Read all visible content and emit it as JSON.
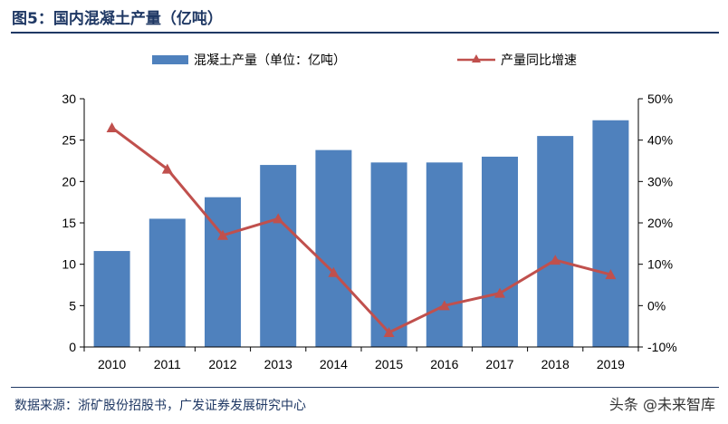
{
  "header": {
    "title": "图5：国内混凝土产量（亿吨）"
  },
  "footer": {
    "source": "数据来源：浙矿股份招股书，广发证券发展研究中心",
    "watermark": "头条 @未来智库"
  },
  "colors": {
    "bar": "#4f81bd",
    "line": "#c0504d",
    "axis": "#000000",
    "title": "#1f3864"
  },
  "chart_data": {
    "type": "bar+line",
    "title": "国内混凝土产量（亿吨）",
    "categories": [
      "2010",
      "2011",
      "2012",
      "2013",
      "2014",
      "2015",
      "2016",
      "2017",
      "2018",
      "2019"
    ],
    "series": [
      {
        "name": "混凝土产量（单位：亿吨）",
        "type": "bar",
        "axis": "left",
        "values": [
          11.6,
          15.5,
          18.1,
          22.0,
          23.8,
          22.3,
          22.3,
          23.0,
          25.5,
          27.4
        ]
      },
      {
        "name": "产量同比增速",
        "type": "line",
        "axis": "right",
        "unit": "%",
        "values": [
          43.0,
          33.0,
          17.0,
          21.0,
          8.0,
          -6.5,
          0.0,
          3.0,
          11.0,
          7.5
        ]
      }
    ],
    "left_axis": {
      "min": 0,
      "max": 30,
      "ticks": [
        "0",
        "5",
        "10",
        "15",
        "20",
        "25",
        "30"
      ]
    },
    "right_axis": {
      "min": -10,
      "max": 50,
      "ticks": [
        "-10%",
        "0%",
        "10%",
        "20%",
        "30%",
        "40%",
        "50%"
      ]
    },
    "legend": {
      "position": "top"
    },
    "grid": false
  }
}
